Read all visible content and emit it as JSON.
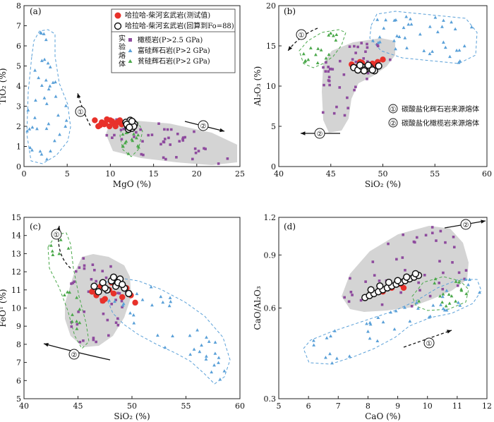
{
  "colors": {
    "melt": "#e8312a",
    "recalc_fill": "#ffffff",
    "recalc_stroke": "#111111",
    "peridotite": "#8e4b9e",
    "si_pyroxenite": "#5aa0d8",
    "sp_pyroxenite": "#4aa84a",
    "region": "#c6c6c6"
  },
  "legend_a": {
    "melt": "哈拉哈-柴河玄武岩(测试值)",
    "recalc": "哈拉哈-柴河玄武岩(回算到Fo=88)",
    "exp_title": "实验熔体",
    "peridotite": "橄榄岩(P>2.5 GPa)",
    "si_pyroxenite": "富硅辉石岩(P>2 GPa)",
    "sp_pyroxenite": "贫硅辉石岩(P>2 GPa)"
  },
  "legend_b": {
    "one": "碳酸盐化辉石岩来源熔体",
    "two": "碳酸盐化橄榄岩来源熔体"
  },
  "chart_data": [
    {
      "panel": "(a)",
      "type": "scatter",
      "xlabel": "MgO (%)",
      "ylabel": "TiO₂ (%)",
      "xlim": [
        0,
        25
      ],
      "ylim": [
        0,
        8
      ],
      "xticks": [
        0,
        5,
        10,
        15,
        20,
        25
      ],
      "yticks": [
        0,
        1,
        2,
        3,
        4,
        5,
        6,
        7,
        8
      ],
      "series": [
        {
          "name": "哈拉哈-柴河玄武岩(测试值)",
          "x": [
            8.2,
            8.6,
            9.0,
            9.3,
            9.6,
            9.9,
            10.2,
            10.5,
            10.8,
            11.1,
            8.8,
            9.4,
            10.0,
            10.6,
            11.3
          ],
          "y": [
            2.3,
            2.0,
            2.2,
            2.1,
            2.35,
            2.0,
            2.25,
            2.1,
            2.2,
            2.3,
            2.05,
            2.15,
            2.3,
            2.0,
            2.1
          ]
        },
        {
          "name": "哈拉哈-柴河玄武岩(回算到Fo=88)",
          "x": [
            11.8,
            12.0,
            12.2,
            12.4,
            12.6,
            12.8,
            12.1,
            12.5,
            12.3,
            12.7,
            11.9,
            12.5,
            12.2
          ],
          "y": [
            2.2,
            2.0,
            2.15,
            2.05,
            2.2,
            2.1,
            1.85,
            1.9,
            2.3,
            2.0,
            2.1,
            2.25,
            1.95
          ]
        }
      ],
      "annotations": [
        "①",
        "②"
      ]
    },
    {
      "panel": "(b)",
      "type": "scatter",
      "xlabel": "SiO₂ (%)",
      "ylabel": "Al₂O₃ (%)",
      "xlim": [
        40,
        60
      ],
      "ylim": [
        0,
        20
      ],
      "xticks": [
        40,
        45,
        50,
        55,
        60
      ],
      "yticks": [
        0,
        5,
        10,
        15,
        20
      ],
      "series": [
        {
          "name": "哈拉哈-柴河玄武岩(测试值)",
          "x": [
            47.0,
            47.5,
            48.0,
            48.5,
            49.0,
            49.5,
            50.0,
            48.2,
            49.2,
            47.8
          ],
          "y": [
            12.7,
            12.4,
            12.9,
            12.6,
            12.8,
            13.0,
            13.3,
            12.2,
            12.5,
            13.0
          ]
        },
        {
          "name": "哈拉哈-柴河玄武岩(回算到Fo=88)",
          "x": [
            47.2,
            47.6,
            48.0,
            48.4,
            48.8,
            49.2,
            49.6,
            48.6,
            49.0,
            47.8,
            48.2
          ],
          "y": [
            12.3,
            12.0,
            12.4,
            12.1,
            12.3,
            11.9,
            12.5,
            12.6,
            12.0,
            12.6,
            11.9
          ]
        }
      ],
      "annotations": [
        "①",
        "②"
      ]
    },
    {
      "panel": "(c)",
      "type": "scatter",
      "xlabel": "SiO₂ (%)",
      "ylabel": "FeOᵀ (%)",
      "xlim": [
        40,
        60
      ],
      "ylim": [
        5,
        15
      ],
      "xticks": [
        40,
        45,
        50,
        55,
        60
      ],
      "yticks": [
        5,
        6,
        7,
        8,
        9,
        10,
        11,
        12,
        13,
        14,
        15
      ],
      "series": [
        {
          "name": "哈拉哈-柴河玄武岩(测试值)",
          "x": [
            46.3,
            46.7,
            47.1,
            47.5,
            47.9,
            48.3,
            48.7,
            49.1,
            49.5,
            49.9,
            50.3,
            47.3,
            48.1
          ],
          "y": [
            10.9,
            10.7,
            11.2,
            10.5,
            11.0,
            10.8,
            11.3,
            10.6,
            11.1,
            10.7,
            10.3,
            10.4,
            11.4
          ]
        },
        {
          "name": "哈拉哈-柴河玄武岩(回算到Fo=88)",
          "x": [
            46.5,
            46.9,
            47.3,
            47.7,
            48.1,
            48.5,
            48.9,
            49.3,
            49.7,
            48.3,
            48.7,
            47.5,
            49.1
          ],
          "y": [
            11.2,
            10.9,
            11.4,
            11.0,
            11.5,
            11.2,
            11.6,
            11.1,
            10.8,
            11.7,
            11.4,
            11.1,
            11.3
          ]
        }
      ],
      "annotations": [
        "①",
        "②"
      ]
    },
    {
      "panel": "(d)",
      "type": "scatter",
      "xlabel": "CaO (%)",
      "ylabel": "CaO/Al₂O₃",
      "xlim": [
        5,
        12
      ],
      "ylim": [
        0.3,
        1.2
      ],
      "yscale": "log",
      "xticks": [
        5,
        6,
        7,
        8,
        9,
        10,
        11,
        12
      ],
      "yticks": [
        0.3,
        0.6,
        0.9,
        1.2
      ],
      "series": [
        {
          "name": "哈拉哈-柴河玄武岩(测试值)",
          "x": [
            8.5,
            8.8,
            9.1,
            9.4,
            9.2,
            9.6
          ],
          "y": [
            0.68,
            0.7,
            0.72,
            0.75,
            0.7,
            0.77
          ]
        },
        {
          "name": "哈拉哈-柴河玄武岩(回算到Fo=88)",
          "x": [
            7.9,
            8.05,
            8.2,
            8.35,
            8.5,
            8.65,
            8.8,
            8.95,
            9.1,
            9.25,
            9.4,
            9.55,
            9.7,
            8.1,
            8.4,
            8.7,
            9.0,
            9.3,
            9.6
          ],
          "y": [
            0.65,
            0.66,
            0.67,
            0.68,
            0.69,
            0.7,
            0.71,
            0.72,
            0.73,
            0.74,
            0.75,
            0.76,
            0.77,
            0.69,
            0.71,
            0.73,
            0.74,
            0.76,
            0.78
          ]
        }
      ],
      "annotations": [
        "①",
        "②"
      ]
    }
  ]
}
